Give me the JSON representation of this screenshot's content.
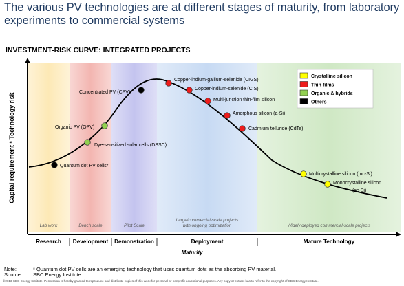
{
  "header": {
    "title": "The various PV technologies are at different stages of maturity, from laboratory experiments to commercial systems",
    "subtitle": "INVESTMENT-RISK CURVE: INTEGRATED PROJECTS"
  },
  "chart_data": {
    "type": "line",
    "ylabel": "Capital requirement * Technology risk",
    "xlabel": "Maturity",
    "stages": [
      {
        "label": "Research",
        "note": "Lab work",
        "color": "#fde9b6"
      },
      {
        "label": "Development",
        "note": "Bench scale",
        "color": "#f3b6b1"
      },
      {
        "label": "Demonstration",
        "note": "Pilot Scale",
        "color": "#c4c4ef"
      },
      {
        "label": "Deployment",
        "note": "Large/commercial-scale projects with ongoing optimization",
        "note_lines": [
          "Large/commercial-scale projects",
          "with ongoing optimization"
        ],
        "color": "#c7daf3"
      },
      {
        "label": "Mature Technology",
        "note": "Widely deployed commercial-scale projects",
        "color": "#cfe8c4"
      }
    ],
    "legend": [
      {
        "name": "Crystalline silicon",
        "color": "#ffff00"
      },
      {
        "name": "Thin-films",
        "color": "#ee1c1c"
      },
      {
        "name": "Organic & hybrids",
        "color": "#92d050"
      },
      {
        "name": "Others",
        "color": "#000000"
      }
    ],
    "legend_position": "top-right",
    "points": [
      {
        "label": "Quantum dot PV cells*",
        "category": "Others"
      },
      {
        "label": "Dye-sensitized solar cells (DSSC)",
        "category": "Organic & hybrids"
      },
      {
        "label": "Organic PV (OPV)",
        "category": "Organic & hybrids"
      },
      {
        "label": "Concentrated PV (CPV)",
        "category": "Others"
      },
      {
        "label": "Copper-indium-gallium-selenide (CIGS)",
        "category": "Thin-films"
      },
      {
        "label": "Copper-indium-selenide (CIS)",
        "category": "Thin-films"
      },
      {
        "label": "Multi-junction thin-film silicon",
        "category": "Thin-films"
      },
      {
        "label": "Amorphous silicon (a-Si)",
        "category": "Thin-films"
      },
      {
        "label": "Cadmium telluride (CdTe)",
        "category": "Thin-films"
      },
      {
        "label": "Multicrystalline silicon (mc-Si)",
        "category": "Crystalline silicon"
      },
      {
        "label": "Monocrystalline silicon",
        "label2": "(sc-Si)",
        "category": "Crystalline silicon"
      }
    ]
  },
  "footer": {
    "note_label": "Note:",
    "note_text": "* Quantum dot PV cells are an emerging technology that uses quantum dots as the absorbing PV material.",
    "source_label": "Source:",
    "source_text": "SBC Energy Institute",
    "copyright": "©2013 SBC Energy Institute. Permission is hereby granted to reproduce and distribute copies of this work for personal or nonprofit educational purposes. Any copy or extract has to refer to the copyright of SBC Energy Institute."
  }
}
